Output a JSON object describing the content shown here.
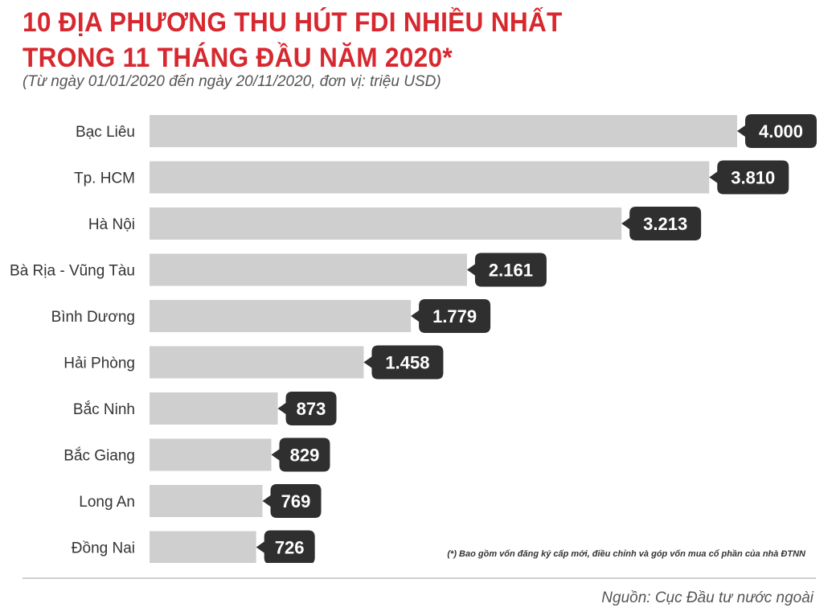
{
  "header": {
    "title_line1": "10 ĐỊA PHƯƠNG THU HÚT FDI NHIỀU NHẤT",
    "title_line2": "TRONG 11 THÁNG ĐẦU NĂM 2020*",
    "subtitle": "(Từ ngày 01/01/2020 đến ngày 20/11/2020, đơn vị: triệu USD)"
  },
  "chart_data": {
    "type": "bar",
    "orientation": "horizontal",
    "categories": [
      "Bạc Liêu",
      "Tp. HCM",
      "Hà Nội",
      "Bà Rịa - Vũng Tàu",
      "Bình Dương",
      "Hải Phòng",
      "Bắc Ninh",
      "Bắc Giang",
      "Long An",
      "Đồng Nai"
    ],
    "values": [
      4000,
      3810,
      3213,
      2161,
      1779,
      1458,
      873,
      829,
      769,
      726
    ],
    "value_labels": [
      "4.000",
      "3.810",
      "3.213",
      "2.161",
      "1.779",
      "1.458",
      "873",
      "829",
      "769",
      "726"
    ],
    "bar_color": "#cfcfcf",
    "label_bg_color": "#2f2f2f",
    "label_text_color": "#ffffff",
    "grid": false,
    "legend": "none"
  },
  "footer": {
    "footnote": "(*) Bao gồm vốn đăng ký cấp mới, điều chỉnh và góp vốn mua cổ phần của nhà ĐTNN",
    "source": "Nguồn: Cục Đầu tư nước ngoài"
  },
  "colors": {
    "title": "#d7282f",
    "text": "#333333",
    "muted": "#555555",
    "divider": "#cfcfcf"
  }
}
